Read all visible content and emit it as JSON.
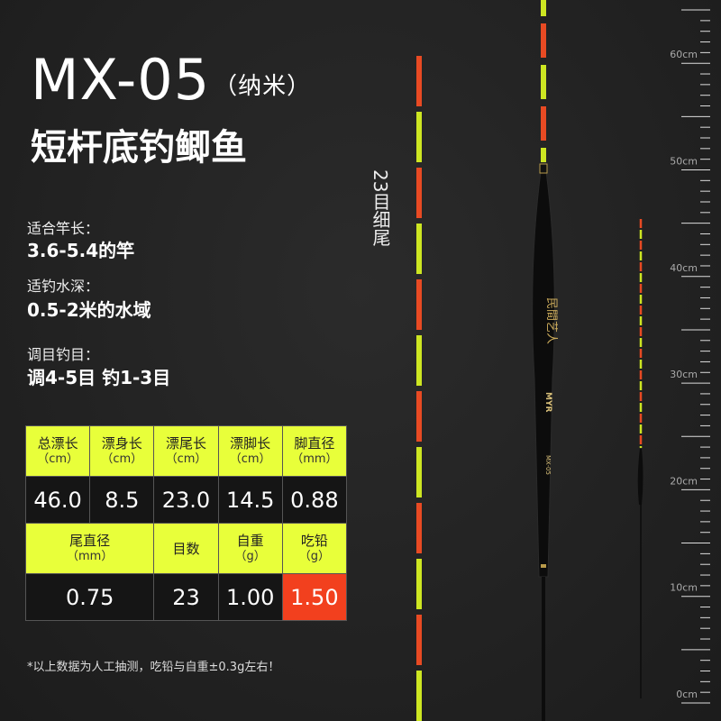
{
  "header": {
    "model": "MX-05",
    "model_suffix": "（纳米）",
    "subtitle": "短杆底钓鲫鱼"
  },
  "specs": [
    {
      "label": "适合竿长：",
      "value": "3.6-5.4的竿"
    },
    {
      "label": "适钓水深：",
      "value": "0.5-2米的水域"
    },
    {
      "label": "调目钓目：",
      "value": "调4-5目 钓1-3目"
    }
  ],
  "tail_caption": "23目细尾",
  "table": {
    "row1_headers": [
      {
        "name": "总漂长",
        "unit": "（cm）"
      },
      {
        "name": "漂身长",
        "unit": "（cm）"
      },
      {
        "name": "漂尾长",
        "unit": "（cm）"
      },
      {
        "name": "漂脚长",
        "unit": "（cm）"
      },
      {
        "name": "脚直径",
        "unit": "（mm）"
      }
    ],
    "row1_values": [
      "46.0",
      "8.5",
      "23.0",
      "14.5",
      "0.88"
    ],
    "row2_headers": [
      {
        "name": "尾直径",
        "unit": "（mm）"
      },
      {
        "name": "目数",
        "unit": ""
      },
      {
        "name": "自重",
        "unit": "（g）"
      },
      {
        "name": "吃铅",
        "unit": "（g）"
      }
    ],
    "row2_values": [
      "0.75",
      "23",
      "1.00",
      "1.50"
    ]
  },
  "note": "*以上数据为人工抽测，吃铅与自重±0.3g左右！",
  "ruler": {
    "unit": "cm",
    "labels": [
      "60cm",
      "50cm",
      "40cm",
      "30cm",
      "20cm",
      "10cm",
      "0cm"
    ]
  },
  "float_logo": {
    "brand": "民間艺人",
    "mark": "MYR",
    "model": "MX-05"
  },
  "colors": {
    "accent_yellow": "#e8ff3a",
    "highlight_red": "#f2401e",
    "stripe_red": "#e84a23",
    "stripe_yellow": "#cde622"
  }
}
